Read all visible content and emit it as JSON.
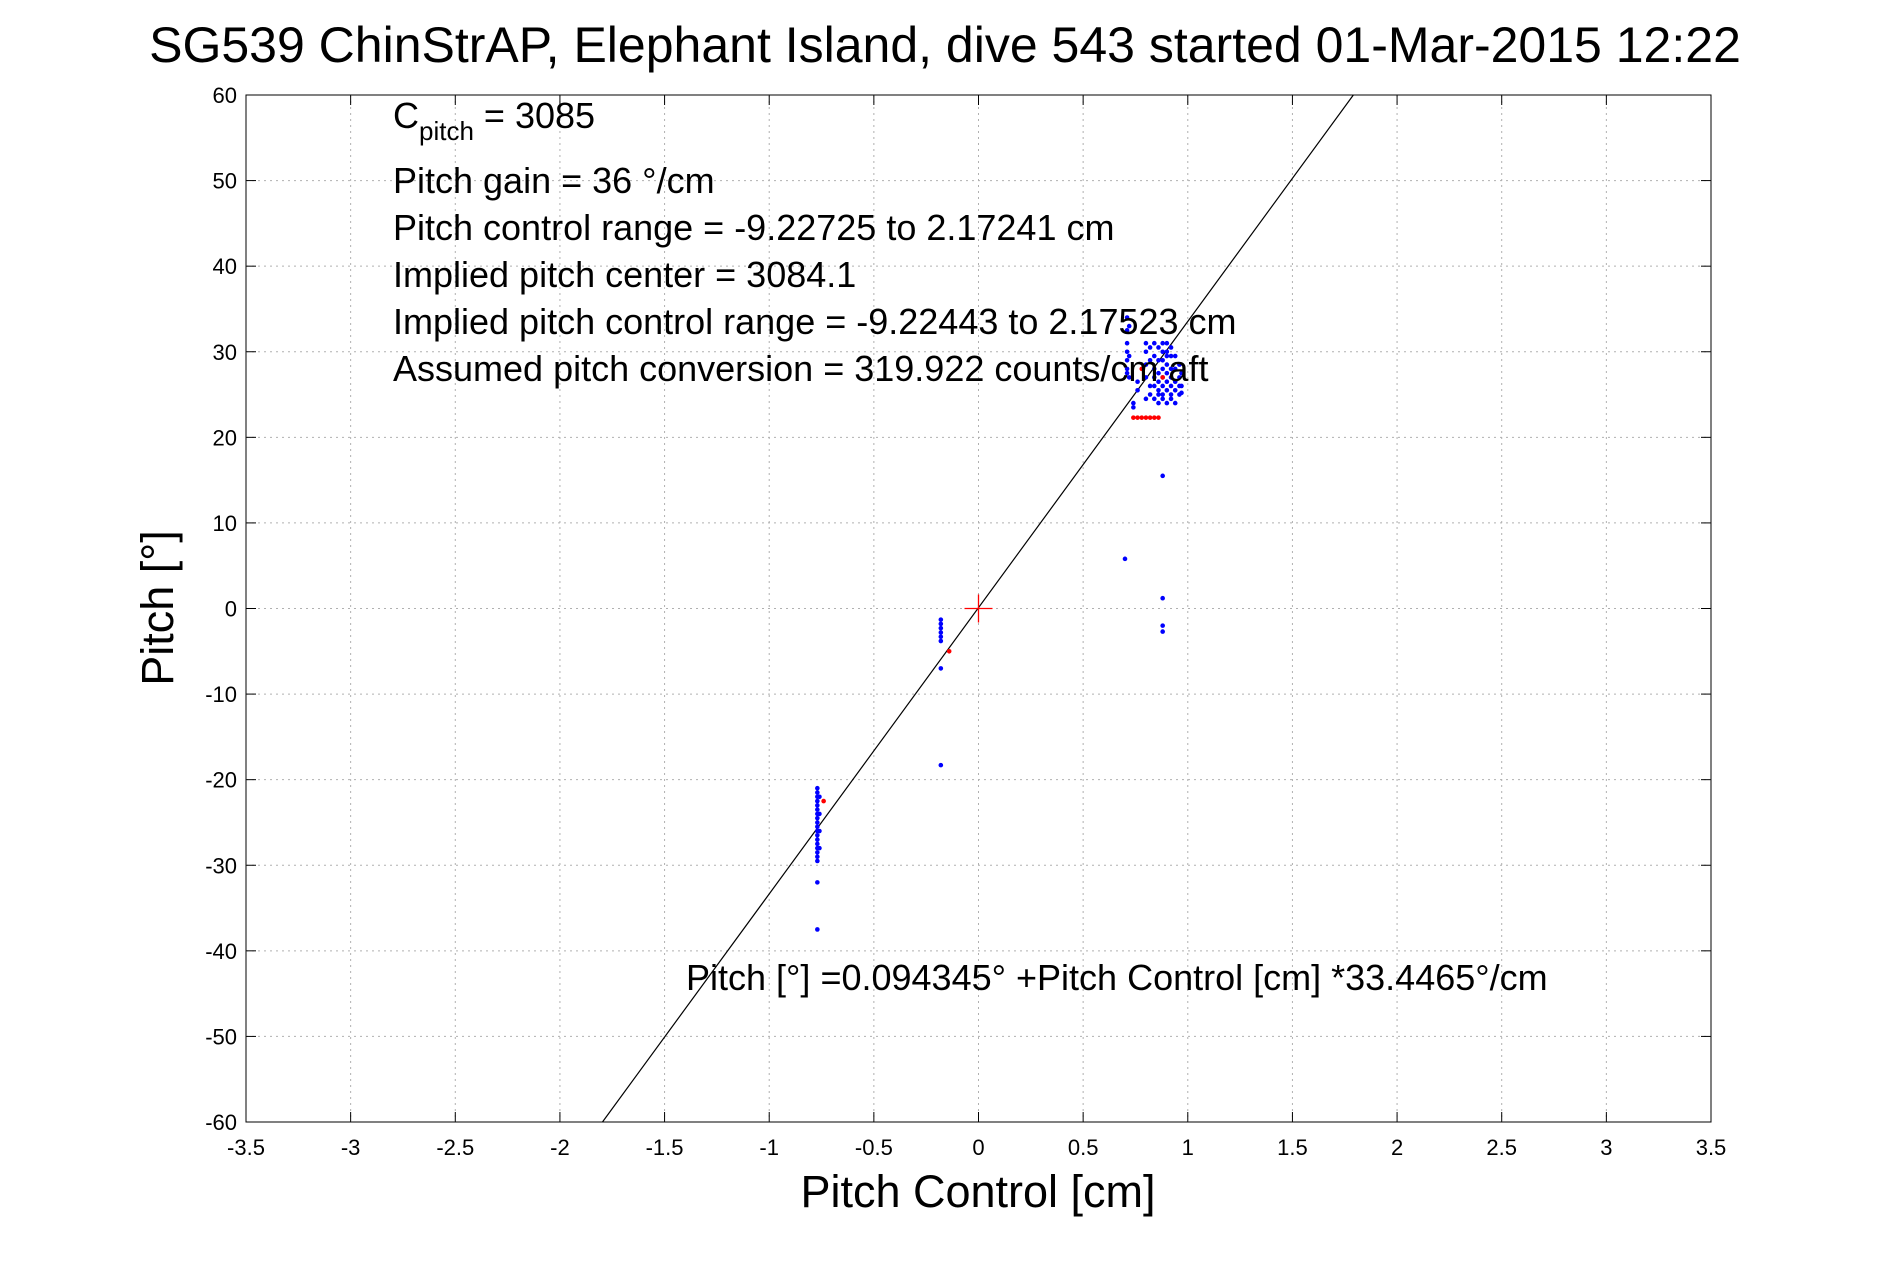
{
  "chart_data": {
    "type": "scatter",
    "title": "SG539 ChinStrAP, Elephant Island, dive 543 started 01-Mar-2015 12:22",
    "xlabel": "Pitch Control [cm]",
    "ylabel": "Pitch [°]",
    "xlim": [
      -3.5,
      3.5
    ],
    "ylim": [
      -60,
      60
    ],
    "x_ticks": [
      -3.5,
      -3,
      -2.5,
      -2,
      -1.5,
      -1,
      -0.5,
      0,
      0.5,
      1,
      1.5,
      2,
      2.5,
      3,
      3.5
    ],
    "x_tick_labels": [
      "-3.5",
      "-3",
      "-2.5",
      "-2",
      "-1.5",
      "-1",
      "-0.5",
      "0",
      "0.5",
      "1",
      "1.5",
      "2",
      "2.5",
      "3",
      "3.5"
    ],
    "y_ticks": [
      60,
      50,
      40,
      30,
      20,
      10,
      0,
      -10,
      -20,
      -30,
      -40,
      -50,
      -60
    ],
    "y_tick_labels": [
      "60",
      "50",
      "40",
      "30",
      "20",
      "10",
      "0",
      "-10",
      "-20",
      "-30",
      "-40",
      "-50",
      "-60"
    ],
    "grid": true,
    "colors": {
      "series_blue": "#0000ff",
      "series_red": "#ff0000",
      "fit_line": "#000000",
      "grid": "#b0b0b0"
    },
    "annotations": {
      "c_pitch_prefix": "C",
      "c_pitch_sub": "pitch",
      "c_pitch_value": " = 3085",
      "pitch_gain": "Pitch gain = 36 °/cm",
      "pitch_control_range": "Pitch control range = -9.22725 to 2.17241 cm",
      "implied_pitch_center": "Implied pitch center = 3084.1",
      "implied_pitch_control_range": "Implied pitch control range = -9.22443 to 2.17523 cm",
      "assumed_pitch_conversion": "Assumed pitch conversion = 319.922 counts/cm aft",
      "fit_equation": "Pitch [°] =0.094345° +Pitch Control [cm] *33.4465°/cm"
    },
    "fit": {
      "intercept": 0.094345,
      "slope": 33.4465
    },
    "center_marker": [
      0,
      0
    ],
    "series": [
      {
        "color": "#0000ff",
        "points": [
          [
            -0.77,
            -21
          ],
          [
            -0.77,
            -21.5
          ],
          [
            -0.77,
            -22
          ],
          [
            -0.77,
            -22.5
          ],
          [
            -0.77,
            -23
          ],
          [
            -0.77,
            -23.5
          ],
          [
            -0.77,
            -24
          ],
          [
            -0.77,
            -24.5
          ],
          [
            -0.77,
            -25
          ],
          [
            -0.77,
            -25.5
          ],
          [
            -0.77,
            -26
          ],
          [
            -0.77,
            -26.5
          ],
          [
            -0.77,
            -27
          ],
          [
            -0.77,
            -27.5
          ],
          [
            -0.77,
            -28
          ],
          [
            -0.77,
            -28.5
          ],
          [
            -0.77,
            -29
          ],
          [
            -0.77,
            -29.5
          ],
          [
            -0.77,
            -32
          ],
          [
            -0.77,
            -37.5
          ],
          [
            -0.76,
            -22
          ],
          [
            -0.76,
            -24
          ],
          [
            -0.76,
            -26
          ],
          [
            -0.76,
            -28
          ],
          [
            -0.18,
            -1.3
          ],
          [
            -0.18,
            -1.8
          ],
          [
            -0.18,
            -2.3
          ],
          [
            -0.18,
            -2.8
          ],
          [
            -0.18,
            -3.3
          ],
          [
            -0.18,
            -3.8
          ],
          [
            -0.18,
            -7
          ],
          [
            -0.18,
            -18.3
          ],
          [
            0.7,
            5.8
          ],
          [
            0.88,
            15.5
          ],
          [
            0.88,
            1.2
          ],
          [
            0.88,
            -2
          ],
          [
            0.88,
            -2.7
          ],
          [
            0.71,
            34
          ],
          [
            0.71,
            32.5
          ],
          [
            0.71,
            31
          ],
          [
            0.71,
            30
          ],
          [
            0.71,
            29
          ],
          [
            0.71,
            28
          ],
          [
            0.71,
            27.5
          ],
          [
            0.72,
            33
          ],
          [
            0.72,
            29.5
          ],
          [
            0.72,
            27
          ],
          [
            0.74,
            24
          ],
          [
            0.74,
            23.5
          ],
          [
            0.76,
            26.5
          ],
          [
            0.76,
            25.5
          ],
          [
            0.8,
            31
          ],
          [
            0.8,
            30
          ],
          [
            0.8,
            28.5
          ],
          [
            0.8,
            27
          ],
          [
            0.8,
            24.5
          ],
          [
            0.82,
            30.5
          ],
          [
            0.82,
            29
          ],
          [
            0.82,
            26
          ],
          [
            0.82,
            25
          ],
          [
            0.84,
            31
          ],
          [
            0.84,
            29.5
          ],
          [
            0.84,
            28
          ],
          [
            0.84,
            27
          ],
          [
            0.84,
            26
          ],
          [
            0.84,
            24.5
          ],
          [
            0.86,
            30.5
          ],
          [
            0.86,
            29
          ],
          [
            0.86,
            27.5
          ],
          [
            0.86,
            26.5
          ],
          [
            0.86,
            25.5
          ],
          [
            0.86,
            25
          ],
          [
            0.86,
            24
          ],
          [
            0.88,
            31
          ],
          [
            0.88,
            30
          ],
          [
            0.88,
            29
          ],
          [
            0.88,
            28
          ],
          [
            0.88,
            27
          ],
          [
            0.88,
            26
          ],
          [
            0.88,
            25
          ],
          [
            0.88,
            24.5
          ],
          [
            0.9,
            31
          ],
          [
            0.9,
            30
          ],
          [
            0.9,
            29.5
          ],
          [
            0.9,
            28.5
          ],
          [
            0.9,
            27.5
          ],
          [
            0.9,
            26.5
          ],
          [
            0.9,
            25.5
          ],
          [
            0.9,
            24
          ],
          [
            0.92,
            30.5
          ],
          [
            0.92,
            29.5
          ],
          [
            0.92,
            28
          ],
          [
            0.92,
            27
          ],
          [
            0.92,
            26
          ],
          [
            0.92,
            25
          ],
          [
            0.92,
            24.5
          ],
          [
            0.94,
            29.5
          ],
          [
            0.94,
            28
          ],
          [
            0.94,
            26.5
          ],
          [
            0.94,
            25.5
          ],
          [
            0.94,
            24
          ],
          [
            0.96,
            28.5
          ],
          [
            0.96,
            27
          ],
          [
            0.96,
            26
          ],
          [
            0.96,
            25
          ],
          [
            0.97,
            27.5
          ],
          [
            0.97,
            26
          ],
          [
            0.97,
            25.2
          ]
        ]
      },
      {
        "color": "#ff0000",
        "points": [
          [
            -0.74,
            -22.5
          ],
          [
            -0.14,
            -5
          ],
          [
            0.74,
            22.3
          ],
          [
            0.76,
            22.3
          ],
          [
            0.78,
            22.3
          ],
          [
            0.8,
            22.3
          ],
          [
            0.82,
            22.3
          ],
          [
            0.84,
            22.3
          ],
          [
            0.86,
            22.3
          ],
          [
            0.78,
            28
          ],
          [
            0.88,
            27
          ]
        ]
      }
    ]
  }
}
